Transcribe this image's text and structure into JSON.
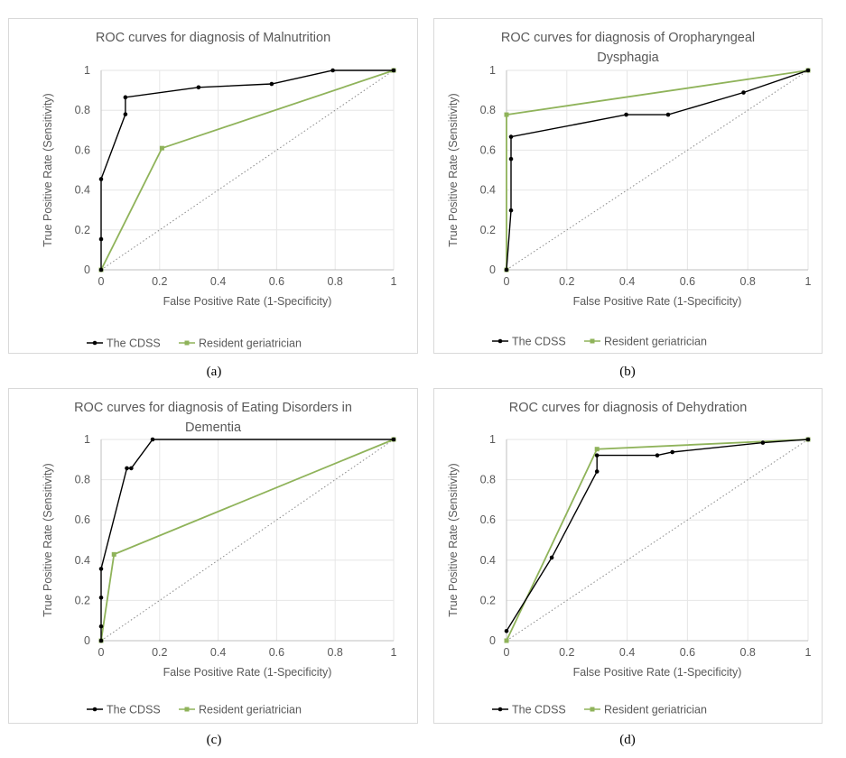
{
  "colors": {
    "cdss": "#000000",
    "resident": "#8fb35a",
    "diagonal": "#8a8a8a",
    "grid": "#e6e6e6"
  },
  "chart_data": [
    {
      "type": "line",
      "caption": "(a)",
      "title_lines": [
        "ROC curves for diagnosis of Malnutrition"
      ],
      "xlabel": "False Positive Rate (1-Specificity)",
      "ylabel": "True Positive Rate (Sensitivity)",
      "xlim": [
        0,
        1
      ],
      "ylim": [
        0,
        1
      ],
      "xticks": [
        "0",
        "0.2",
        "0.4",
        "0.6",
        "0.8",
        "1"
      ],
      "yticks": [
        "0",
        "0.2",
        "0.4",
        "0.6",
        "0.8",
        "1"
      ],
      "grid": true,
      "legend": "bottom-left",
      "series": [
        {
          "name": "The CDSS",
          "x": [
            0,
            0,
            0,
            0.083,
            0.083,
            0.333,
            0.583,
            0.792,
            1
          ],
          "y": [
            0,
            0.154,
            0.455,
            0.78,
            0.865,
            0.915,
            0.932,
            1,
            1
          ]
        },
        {
          "name": "Resident geriatrician",
          "x": [
            0,
            0.208,
            1
          ],
          "y": [
            0,
            0.61,
            1
          ]
        }
      ]
    },
    {
      "type": "line",
      "caption": "(b)",
      "title_lines": [
        "ROC curves for diagnosis of Oropharyngeal",
        "Dysphagia"
      ],
      "xlabel": "False Positive Rate (1-Specificity)",
      "ylabel": "True Positive Rate (Sensitivity)",
      "xlim": [
        0,
        1
      ],
      "ylim": [
        0,
        1
      ],
      "xticks": [
        "0",
        "0.2",
        "0.4",
        "0.6",
        "0.8",
        "1"
      ],
      "yticks": [
        "0",
        "0.2",
        "0.4",
        "0.6",
        "0.8",
        "1"
      ],
      "grid": true,
      "legend": "bottom-left",
      "series": [
        {
          "name": "The CDSS",
          "x": [
            0,
            0.015,
            0.015,
            0.015,
            0.397,
            0.536,
            0.786,
            1
          ],
          "y": [
            0,
            0.298,
            0.556,
            0.667,
            0.778,
            0.778,
            0.889,
            1
          ]
        },
        {
          "name": "Resident geriatrician",
          "x": [
            0,
            0,
            1
          ],
          "y": [
            0,
            0.778,
            1
          ]
        }
      ]
    },
    {
      "type": "line",
      "caption": "(c)",
      "title_lines": [
        "ROC curves for diagnosis of Eating Disorders in",
        "Dementia"
      ],
      "xlabel": "False Positive Rate (1-Specificity)",
      "ylabel": "True Positive Rate (Sensitivity)",
      "xlim": [
        0,
        1
      ],
      "ylim": [
        0,
        1
      ],
      "xticks": [
        "0",
        "0.2",
        "0.4",
        "0.6",
        "0.8",
        "1"
      ],
      "yticks": [
        "0",
        "0.2",
        "0.4",
        "0.6",
        "0.8",
        "1"
      ],
      "grid": true,
      "legend": "bottom-left",
      "series": [
        {
          "name": "The CDSS",
          "x": [
            0,
            0,
            0,
            0,
            0.088,
            0.103,
            0.176,
            1
          ],
          "y": [
            0,
            0.071,
            0.214,
            0.357,
            0.857,
            0.857,
            1,
            1
          ]
        },
        {
          "name": "Resident geriatrician",
          "x": [
            0,
            0.044,
            1
          ],
          "y": [
            0,
            0.429,
            1
          ]
        }
      ]
    },
    {
      "type": "line",
      "caption": "(d)",
      "title_lines": [
        "ROC curves for diagnosis of Dehydration"
      ],
      "xlabel": "False Positive Rate (1-Specificity)",
      "ylabel": "True Positive Rate (Sensitivity)",
      "xlim": [
        0,
        1
      ],
      "ylim": [
        0,
        1
      ],
      "xticks": [
        "0",
        "0.2",
        "0.4",
        "0.6",
        "0.8",
        "1"
      ],
      "yticks": [
        "0",
        "0.2",
        "0.4",
        "0.6",
        "0.8",
        "1"
      ],
      "grid": true,
      "legend": "bottom-left",
      "series": [
        {
          "name": "The CDSS",
          "x": [
            0,
            0.15,
            0.3,
            0.3,
            0.5,
            0.55,
            0.85,
            1
          ],
          "y": [
            0.048,
            0.413,
            0.841,
            0.921,
            0.921,
            0.937,
            0.984,
            1
          ]
        },
        {
          "name": "Resident geriatrician",
          "x": [
            0,
            0.3,
            1
          ],
          "y": [
            0,
            0.952,
            1
          ]
        }
      ]
    }
  ]
}
